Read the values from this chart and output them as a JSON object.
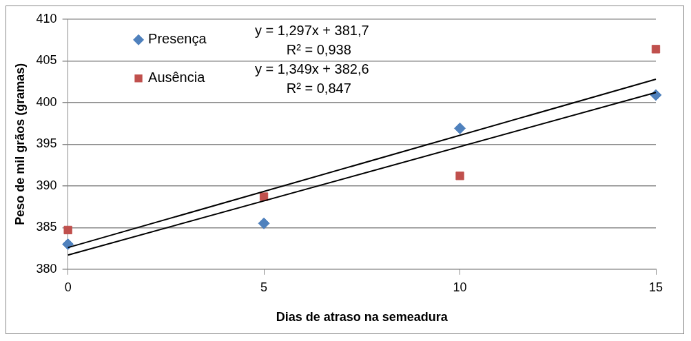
{
  "chart_data": {
    "type": "scatter",
    "xlabel": "Dias de atraso na semeadura",
    "ylabel": "Peso de mil grãos (gramas)",
    "xlim": [
      0,
      15
    ],
    "xticks": [
      0,
      5,
      10,
      15
    ],
    "ylim": [
      380,
      410
    ],
    "yticks": [
      380,
      385,
      390,
      395,
      400,
      405,
      410
    ],
    "grid": "y",
    "legend": "top left",
    "series": [
      {
        "name": "Presença",
        "color": "#4f81bd",
        "marker": "diamond",
        "x": [
          0,
          5,
          10,
          15
        ],
        "values": [
          383.0,
          385.5,
          396.9,
          400.9
        ]
      },
      {
        "name": "Ausência",
        "color": "#c0504d",
        "marker": "square",
        "x": [
          0,
          5,
          10,
          15
        ],
        "values": [
          384.7,
          388.7,
          391.2,
          406.4
        ]
      },
      {
        "type": "line",
        "color": "#000000",
        "marker": "none",
        "x": [
          0,
          15
        ],
        "values": [
          381.7,
          401.2
        ]
      },
      {
        "type": "line",
        "color": "#000000",
        "marker": "none",
        "x": [
          0,
          15
        ],
        "values": [
          382.6,
          402.8
        ]
      }
    ],
    "annotations": [
      "y = 1,297x + 381,7",
      "R² = 0,938",
      "y = 1,349x + 382,6",
      "R² = 0,847"
    ]
  }
}
